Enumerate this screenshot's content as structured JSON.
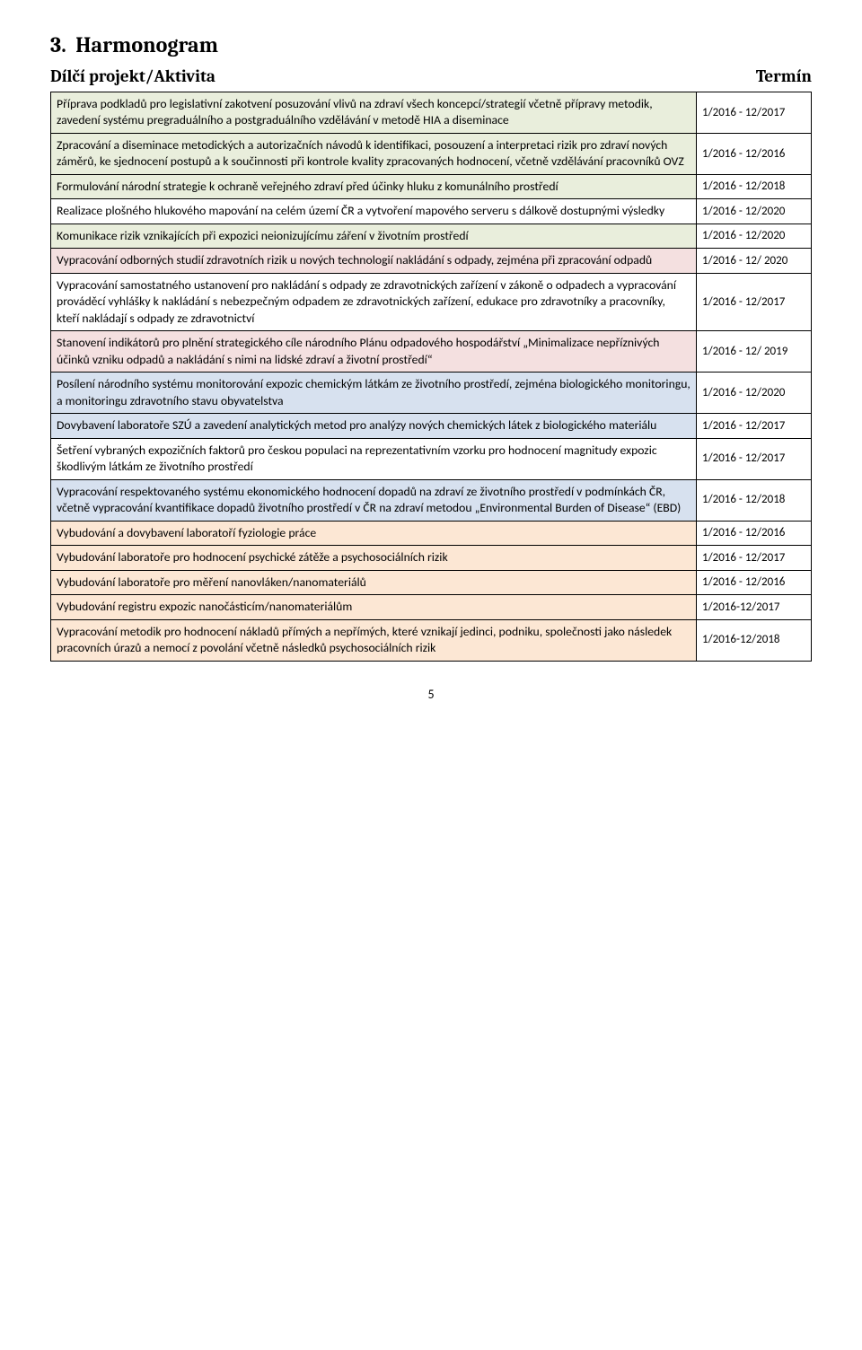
{
  "section_number": "3.",
  "section_title": "Harmonogram",
  "col_activity": "Dílčí projekt/Aktivita",
  "col_term": "Termín",
  "page_number": "5",
  "row_colors": {
    "green": "#e9eedc",
    "pink": "#f4e0e0",
    "blue": "#d7e1ef",
    "orange": "#fce7d4",
    "none": "#ffffff"
  },
  "rows": [
    {
      "color": "green",
      "term": "1/2016 - 12/2017",
      "text": "Příprava podkladů pro legislativní zakotvení posuzování vlivů na zdraví všech koncepcí/strategií včetně přípravy metodik, zavedení systému pregraduálního a postgraduálního vzdělávání v metodě HIA a diseminace"
    },
    {
      "color": "green",
      "term": "1/2016 - 12/2016",
      "text": "Zpracování a diseminace metodických a autorizačních návodů k identifikaci, posouzení a interpretaci rizik pro zdraví nových záměrů, ke sjednocení postupů a k součinnosti při kontrole kvality zpracovaných hodnocení, včetně vzdělávání pracovníků OVZ"
    },
    {
      "color": "green",
      "term": "1/2016 - 12/2018",
      "text": "Formulování národní strategie k ochraně veřejného zdraví před účinky hluku z komunálního prostředí"
    },
    {
      "color": "none",
      "term": "1/2016 - 12/2020",
      "text": "Realizace plošného hlukového mapování na celém území ČR a vytvoření mapového serveru s dálkově dostupnými výsledky"
    },
    {
      "color": "green",
      "term": "1/2016 - 12/2020",
      "text": "Komunikace rizik vznikajících při expozici neionizujícímu záření v životním prostředí"
    },
    {
      "color": "pink",
      "term": "1/2016 - 12/ 2020",
      "text": "Vypracování odborných studií zdravotních rizik u nových technologií nakládání s odpady, zejména při zpracování odpadů"
    },
    {
      "color": "none",
      "term": "1/2016 - 12/2017",
      "text": "Vypracování samostatného ustanovení pro nakládání s odpady ze zdravotnických zařízení v zákoně o odpadech a vypracování prováděcí vyhlášky k nakládání s nebezpečným odpadem ze zdravotnických zařízení, edukace pro zdravotníky a pracovníky, kteří nakládají s odpady ze zdravotnictví"
    },
    {
      "color": "pink",
      "term": "1/2016 - 12/ 2019",
      "text": "Stanovení indikátorů pro plnění strategického cíle národního Plánu odpadového hospodářství „Minimalizace nepříznivých účinků vzniku odpadů a nakládání s nimi na lidské zdraví a životní prostředí“"
    },
    {
      "color": "blue",
      "term": "1/2016 - 12/2020",
      "text": "Posílení národního systému monitorování expozic chemickým látkám ze životního prostředí, zejména biologického monitoringu, a monitoringu zdravotního stavu obyvatelstva"
    },
    {
      "color": "blue",
      "term": "1/2016 - 12/2017",
      "text": "Dovybavení laboratoře SZÚ a zavedení analytických metod pro analýzy nových chemických látek z biologického materiálu"
    },
    {
      "color": "none",
      "term": "1/2016 - 12/2017",
      "text": "Šetření vybraných expozičních faktorů pro českou populaci na reprezentativním vzorku pro hodnocení magnitudy expozic škodlivým látkám ze životního prostředí"
    },
    {
      "color": "blue",
      "term": "1/2016 - 12/2018",
      "text": "Vypracování respektovaného systému ekonomického hodnocení dopadů na zdraví ze životního prostředí v podmínkách ČR, včetně vypracování kvantifikace dopadů životního prostředí v ČR na zdraví metodou „Environmental Burden of Disease“ (EBD)"
    },
    {
      "color": "orange",
      "term": "1/2016 - 12/2016",
      "text": "Vybudování a dovybavení laboratoří fyziologie práce"
    },
    {
      "color": "orange",
      "term": "1/2016 - 12/2017",
      "text": "Vybudování laboratoře pro hodnocení psychické zátěže a psychosociálních rizik"
    },
    {
      "color": "orange",
      "term": "1/2016 - 12/2016",
      "text": "Vybudování laboratoře pro měření nanovláken/nanomateriálů"
    },
    {
      "color": "orange",
      "term": "1/2016-12/2017",
      "text": "Vybudování registru expozic nanočásticím/nanomateriálům"
    },
    {
      "color": "orange",
      "term": "1/2016-12/2018",
      "text": "Vypracování metodik pro hodnocení nákladů přímých a nepřímých, které vznikají jedinci, podniku, společnosti jako následek pracovních úrazů a nemocí z povolání včetně následků psychosociálních rizik"
    }
  ]
}
